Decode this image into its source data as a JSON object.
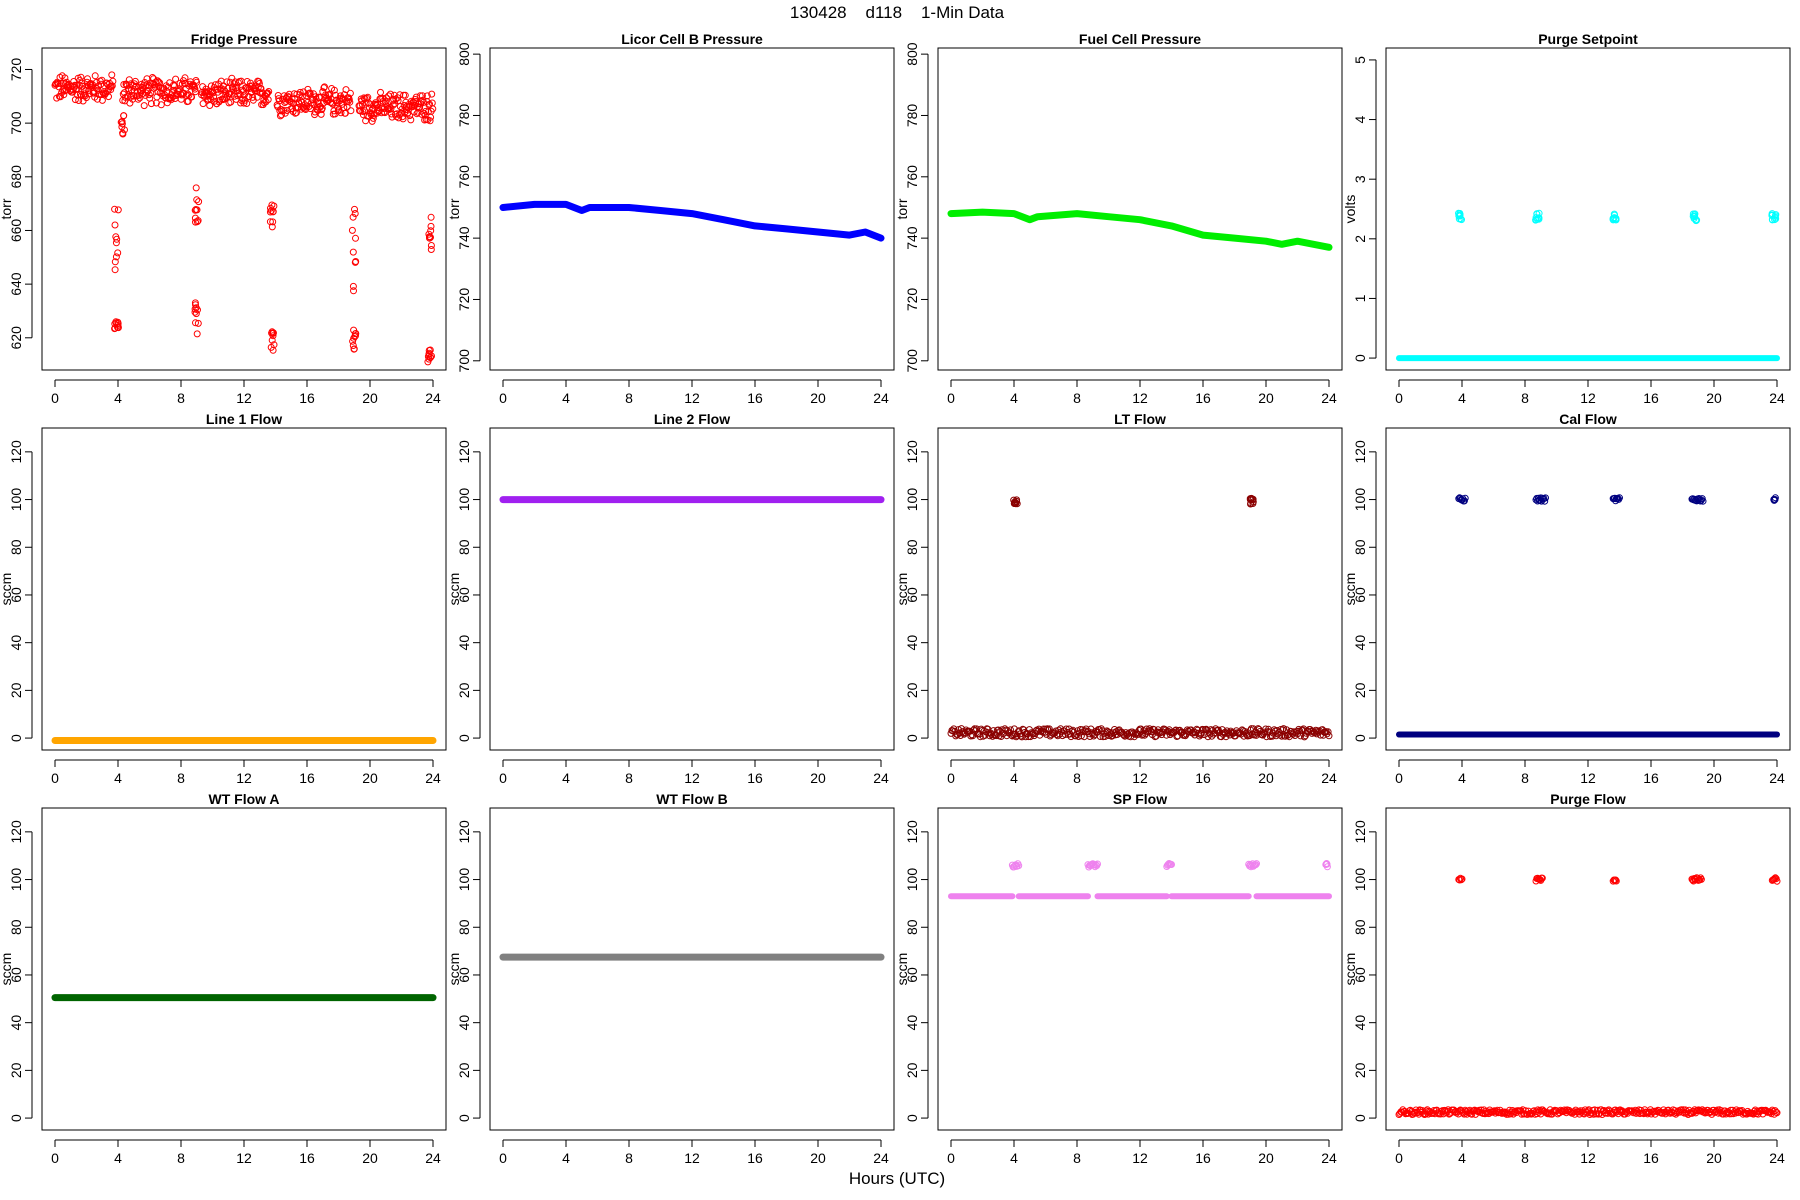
{
  "figure": {
    "title": "130428    d118    1-Min Data",
    "xlabel": "Hours (UTC)"
  },
  "chart_data": [
    {
      "type": "scatter",
      "title": "Fridge Pressure",
      "ylabel": "torr",
      "color": "#ff0000",
      "marker": "open",
      "xlim": [
        0,
        24
      ],
      "xticks": [
        0,
        4,
        8,
        12,
        16,
        20,
        24
      ],
      "ylim": [
        608,
        728
      ],
      "yticks": [
        620,
        640,
        660,
        680,
        700,
        720
      ],
      "series": [
        {
          "x_range": [
            0,
            3.7
          ],
          "y_center": 713,
          "y_spread": 6
        },
        {
          "x_range": [
            4.3,
            9.0
          ],
          "y_center": 712,
          "y_spread": 6
        },
        {
          "x_range": [
            9.3,
            13.6
          ],
          "y_center": 711,
          "y_spread": 6
        },
        {
          "x_range": [
            14.1,
            18.8
          ],
          "y_center": 708,
          "y_spread": 6
        },
        {
          "x_range": [
            19.3,
            24
          ],
          "y_center": 706,
          "y_spread": 6
        }
      ],
      "clusters": [
        {
          "x": 3.9,
          "y_range": [
            645,
            672
          ]
        },
        {
          "x": 3.9,
          "y_range": [
            623,
            626
          ]
        },
        {
          "x": 4.3,
          "y_range": [
            695,
            703
          ]
        },
        {
          "x": 9.0,
          "y_range": [
            662,
            676
          ]
        },
        {
          "x": 9.0,
          "y_range": [
            620,
            633
          ]
        },
        {
          "x": 13.8,
          "y_range": [
            655,
            672
          ]
        },
        {
          "x": 13.8,
          "y_range": [
            614,
            624
          ]
        },
        {
          "x": 19.0,
          "y_range": [
            637,
            668
          ]
        },
        {
          "x": 19.0,
          "y_range": [
            615,
            623
          ]
        },
        {
          "x": 23.8,
          "y_range": [
            648,
            665
          ]
        },
        {
          "x": 23.8,
          "y_range": [
            611,
            617
          ]
        }
      ]
    },
    {
      "type": "line",
      "title": "Licor Cell B Pressure",
      "ylabel": "torr",
      "color": "#0000ff",
      "marker": "thick",
      "xlim": [
        0,
        24
      ],
      "xticks": [
        0,
        4,
        8,
        12,
        16,
        20,
        24
      ],
      "ylim": [
        697,
        802
      ],
      "yticks": [
        700,
        720,
        740,
        760,
        780,
        800
      ],
      "x": [
        0,
        2,
        4,
        5,
        5.5,
        8,
        10,
        12,
        14,
        16,
        18,
        20,
        22,
        23,
        24
      ],
      "y": [
        750,
        751,
        751,
        749,
        750,
        750,
        749,
        748,
        746,
        744,
        743,
        742,
        741,
        742,
        740
      ]
    },
    {
      "type": "line",
      "title": "Fuel Cell Pressure",
      "ylabel": "torr",
      "color": "#00ee00",
      "marker": "thick",
      "xlim": [
        0,
        24
      ],
      "xticks": [
        0,
        4,
        8,
        12,
        16,
        20,
        24
      ],
      "ylim": [
        697,
        802
      ],
      "yticks": [
        700,
        720,
        740,
        760,
        780,
        800
      ],
      "x": [
        0,
        2,
        4,
        5,
        5.5,
        8,
        10,
        12,
        14,
        16,
        18,
        20,
        21,
        22,
        24
      ],
      "y": [
        748,
        748.5,
        748,
        746,
        747,
        748,
        747,
        746,
        744,
        741,
        740,
        739,
        738,
        739,
        737
      ]
    },
    {
      "type": "scatter",
      "title": "Purge Setpoint",
      "ylabel": "volts",
      "color": "#00ffff",
      "marker": "open",
      "xlim": [
        0,
        24
      ],
      "xticks": [
        0,
        4,
        8,
        12,
        16,
        20,
        24
      ],
      "ylim": [
        -0.2,
        5.2
      ],
      "yticks": [
        0,
        1,
        2,
        3,
        4,
        5
      ],
      "baseline": {
        "y": 0,
        "x_range": [
          0,
          24
        ]
      },
      "clusters": [
        {
          "x": 3.9,
          "y_range": [
            2.3,
            2.43
          ]
        },
        {
          "x": 8.8,
          "y_range": [
            2.3,
            2.43
          ]
        },
        {
          "x": 13.7,
          "y_range": [
            2.3,
            2.43
          ]
        },
        {
          "x": 18.8,
          "y_range": [
            2.3,
            2.43
          ]
        },
        {
          "x": 23.8,
          "y_range": [
            2.3,
            2.43
          ]
        }
      ]
    },
    {
      "type": "line",
      "title": "Line 1 Flow",
      "ylabel": "sccm",
      "color": "#ffa500",
      "marker": "thick",
      "xlim": [
        0,
        24
      ],
      "xticks": [
        0,
        4,
        8,
        12,
        16,
        20,
        24
      ],
      "ylim": [
        -5,
        130
      ],
      "yticks": [
        0,
        20,
        40,
        60,
        80,
        100,
        120
      ],
      "x": [
        0,
        24
      ],
      "y": [
        -1,
        -1
      ]
    },
    {
      "type": "line",
      "title": "Line 2 Flow",
      "ylabel": "sccm",
      "color": "#a020f0",
      "marker": "thick",
      "xlim": [
        0,
        24
      ],
      "xticks": [
        0,
        4,
        8,
        12,
        16,
        20,
        24
      ],
      "ylim": [
        -5,
        130
      ],
      "yticks": [
        0,
        20,
        40,
        60,
        80,
        100,
        120
      ],
      "x": [
        0,
        24
      ],
      "y": [
        100,
        100
      ]
    },
    {
      "type": "scatter",
      "title": "LT Flow",
      "ylabel": "sccm",
      "color": "#8b0000",
      "marker": "open",
      "xlim": [
        0,
        24
      ],
      "xticks": [
        0,
        4,
        8,
        12,
        16,
        20,
        24
      ],
      "ylim": [
        -5,
        130
      ],
      "yticks": [
        0,
        20,
        40,
        60,
        80,
        100,
        120
      ],
      "band": {
        "x_range": [
          0,
          24
        ],
        "y_range": [
          0.5,
          4
        ],
        "gaps": [
          4.1,
          19.1
        ]
      },
      "clusters": [
        {
          "x": 4.1,
          "y_range": [
            98,
            101
          ]
        },
        {
          "x": 19.1,
          "y_range": [
            98,
            102
          ]
        }
      ]
    },
    {
      "type": "scatter",
      "title": "Cal Flow",
      "ylabel": "sccm",
      "color": "#000080",
      "marker": "open",
      "xlim": [
        0,
        24
      ],
      "xticks": [
        0,
        4,
        8,
        12,
        16,
        20,
        24
      ],
      "ylim": [
        -5,
        130
      ],
      "yticks": [
        0,
        20,
        40,
        60,
        80,
        100,
        120
      ],
      "baseline": {
        "y": 1.5,
        "x_range": [
          0,
          24
        ]
      },
      "clusters": [
        {
          "x_range": [
            3.8,
            4.2
          ],
          "y": 100
        },
        {
          "x_range": [
            8.7,
            9.3
          ],
          "y": 100
        },
        {
          "x_range": [
            13.6,
            14
          ],
          "y": 100
        },
        {
          "x_range": [
            18.6,
            19.3
          ],
          "y": 100
        },
        {
          "x_range": [
            23.8,
            23.9
          ],
          "y": 100
        }
      ]
    },
    {
      "type": "line",
      "title": "WT Flow A",
      "ylabel": "sccm",
      "color": "#006400",
      "marker": "thick",
      "xlim": [
        0,
        24
      ],
      "xticks": [
        0,
        4,
        8,
        12,
        16,
        20,
        24
      ],
      "ylim": [
        -5,
        130
      ],
      "yticks": [
        0,
        20,
        40,
        60,
        80,
        100,
        120
      ],
      "x": [
        0,
        24
      ],
      "y": [
        50.5,
        50.5
      ]
    },
    {
      "type": "line",
      "title": "WT Flow B",
      "ylabel": "sccm",
      "color": "#808080",
      "marker": "thick",
      "xlim": [
        0,
        24
      ],
      "xticks": [
        0,
        4,
        8,
        12,
        16,
        20,
        24
      ],
      "ylim": [
        -5,
        130
      ],
      "yticks": [
        0,
        20,
        40,
        60,
        80,
        100,
        120
      ],
      "x": [
        0,
        24
      ],
      "y": [
        67.5,
        67.5
      ]
    },
    {
      "type": "scatter",
      "title": "SP Flow",
      "ylabel": "sccm",
      "color": "#ee82ee",
      "marker": "open",
      "xlim": [
        0,
        24
      ],
      "xticks": [
        0,
        4,
        8,
        12,
        16,
        20,
        24
      ],
      "ylim": [
        -5,
        130
      ],
      "yticks": [
        0,
        20,
        40,
        60,
        80,
        100,
        120
      ],
      "segments": [
        {
          "x_range": [
            0,
            3.9
          ],
          "y": 93
        },
        {
          "x_range": [
            4.3,
            8.7
          ],
          "y": 93
        },
        {
          "x_range": [
            9.3,
            13.7
          ],
          "y": 93
        },
        {
          "x_range": [
            14.0,
            18.9
          ],
          "y": 93
        },
        {
          "x_range": [
            19.4,
            24
          ],
          "y": 93
        }
      ],
      "clusters": [
        {
          "x_range": [
            3.9,
            4.3
          ],
          "y": 106
        },
        {
          "x_range": [
            8.7,
            9.3
          ],
          "y": 106
        },
        {
          "x_range": [
            13.7,
            14.0
          ],
          "y": 106
        },
        {
          "x_range": [
            18.9,
            19.4
          ],
          "y": 106
        },
        {
          "x_range": [
            23.8,
            23.9
          ],
          "y": 106
        }
      ]
    },
    {
      "type": "scatter",
      "title": "Purge Flow",
      "ylabel": "sccm",
      "color": "#ff0000",
      "marker": "open",
      "xlim": [
        0,
        24
      ],
      "xticks": [
        0,
        4,
        8,
        12,
        16,
        20,
        24
      ],
      "ylim": [
        -5,
        130
      ],
      "yticks": [
        0,
        20,
        40,
        60,
        80,
        100,
        120
      ],
      "band": {
        "x_range": [
          0,
          24
        ],
        "y_range": [
          1.5,
          3.5
        ]
      },
      "clusters": [
        {
          "x_range": [
            3.8,
            4.0
          ],
          "y": 100
        },
        {
          "x_range": [
            8.7,
            9.1
          ],
          "y": 100
        },
        {
          "x_range": [
            13.6,
            13.8
          ],
          "y": 100
        },
        {
          "x_range": [
            18.6,
            19.2
          ],
          "y": 100
        },
        {
          "x_range": [
            23.7,
            24.0
          ],
          "y": 100
        }
      ]
    }
  ]
}
